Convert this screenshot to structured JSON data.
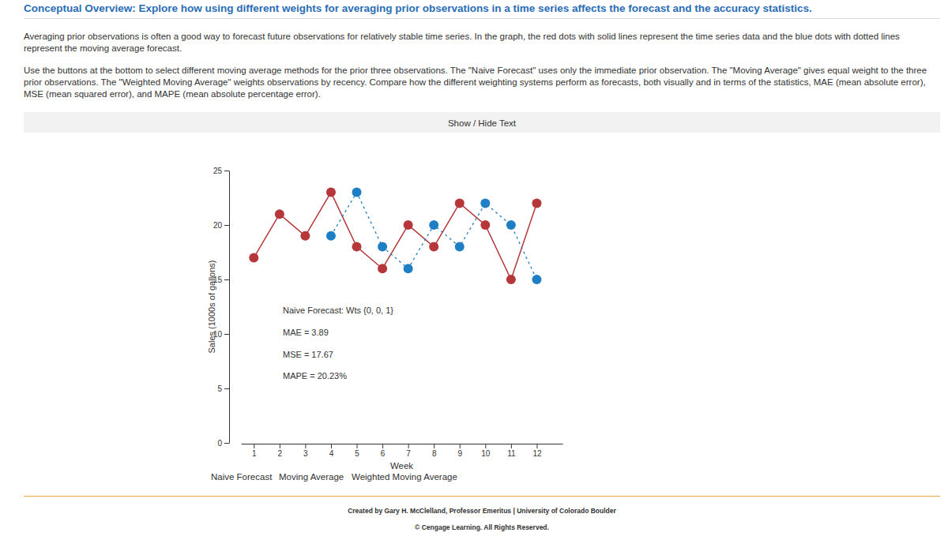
{
  "header": {
    "title": "Conceptual Overview: Explore how using different weights for averaging prior observations in a time series affects the forecast and the accuracy statistics.",
    "paragraphs": [
      "Averaging prior observations is often a good way to forecast future observations for relatively stable time series. In the graph, the red dots with solid lines represent the time series data and the blue dots with dotted lines represent the moving average forecast.",
      "Use the buttons at the bottom to select different moving average methods for the prior three observations. The \"Naive Forecast\" uses only the immediate prior observation. The \"Moving Average\" gives equal weight to the three prior observations. The \"Weighted Moving Average\" weights observations by recency. Compare how the different weighting systems perform as forecasts, both visually and in terms of the statistics, MAE (mean absolute error), MSE (mean squared error), and MAPE (mean absolute percentage error)."
    ]
  },
  "toggle": "Show / Hide Text",
  "chart_data": {
    "type": "line",
    "x_label": "Week",
    "y_label": "Sales (1000s of gallons)",
    "x": [
      1,
      2,
      3,
      4,
      5,
      6,
      7,
      8,
      9,
      10,
      11,
      12
    ],
    "series": [
      {
        "color": "#b5373a",
        "marker": "circle",
        "line_style": "solid",
        "values": [
          17,
          21,
          19,
          23,
          18,
          16,
          20,
          18,
          22,
          20,
          15,
          22
        ]
      },
      {
        "color": "#1f7fc4",
        "marker": "circle",
        "line_style": "dotted",
        "values": [
          null,
          null,
          null,
          19,
          23,
          18,
          16,
          20,
          18,
          22,
          20,
          15
        ]
      }
    ],
    "xlim": [
      0.5,
      13
    ],
    "xticks": [
      1,
      2,
      3,
      4,
      5,
      6,
      7,
      8,
      9,
      10,
      11,
      12
    ],
    "ylim": [
      0,
      25
    ],
    "yticks": [
      0,
      5,
      10,
      15,
      20,
      25
    ],
    "grid": false,
    "annotations": [
      "Naive Forecast: Wts {0, 0, 1}",
      "MAE = 3.89",
      "MSE = 17.67",
      "MAPE = 20.23%"
    ]
  },
  "buttons": [
    "Naive Forecast",
    "Moving Average",
    "Weighted Moving Average"
  ],
  "footer": {
    "credit": "Created by Gary H. McClelland, Professor Emeritus | University of Colorado Boulder",
    "copyright": "© Cengage Learning. All Rights Reserved."
  }
}
